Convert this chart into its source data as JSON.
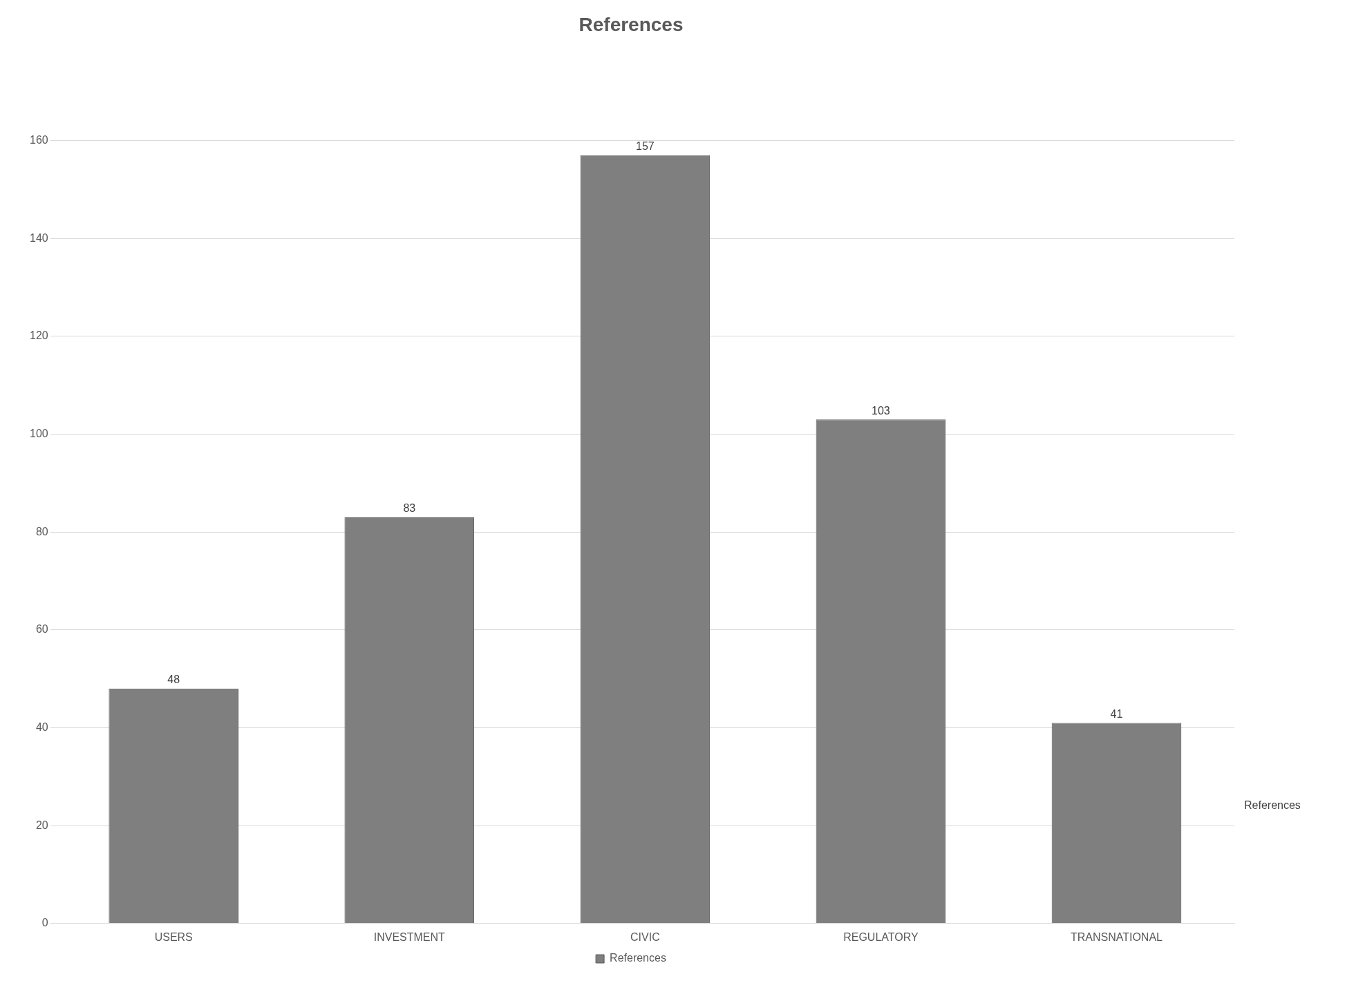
{
  "chart_data": {
    "type": "bar",
    "title": "References",
    "categories": [
      "USERS",
      "INVESTMENT",
      "CIVIC",
      "REGULATORY",
      "TRANSNATIONAL"
    ],
    "series": [
      {
        "name": "References",
        "color": "#7f7f7f",
        "values": [
          48,
          83,
          157,
          103,
          41
        ]
      }
    ],
    "ylim": [
      0,
      160
    ],
    "yticks": [
      0,
      20,
      40,
      60,
      80,
      100,
      120,
      140,
      160
    ],
    "grid": "y",
    "legend": "bottom",
    "data_labels": true,
    "annotations": [
      "References"
    ]
  }
}
